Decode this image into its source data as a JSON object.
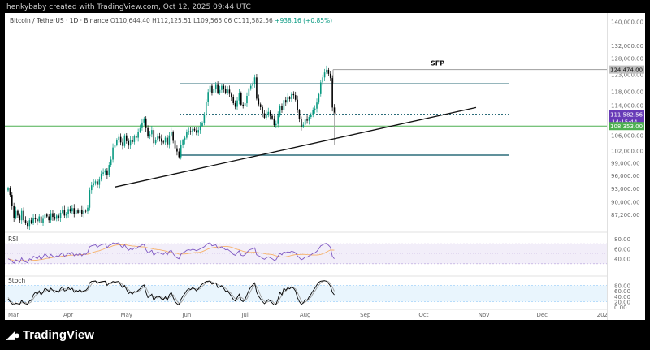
{
  "credit": "henkybaby created with TradingView.com, Oct 12, 2025 09:44 UTC",
  "legend": {
    "symbol": "Bitcoin / TetherUS · 1D · Binance",
    "o": "O110,644.40",
    "h": "H112,125.51",
    "l": "L109,565.06",
    "c": "C111,582.56",
    "chg": "+938.16 (+0.85%)"
  },
  "brand": "TradingView",
  "brand_icon": "tradingview-logo-icon",
  "colors": {
    "up": "#089981",
    "down": "#000000",
    "level": "#2c6d7a",
    "green_line": "#4caf50",
    "rsi": "#7e57c2",
    "rsi_ma": "#f6b26b",
    "stoch_k": "#000000",
    "stoch_d": "#9e9e9e",
    "price_label": "#673ab7"
  },
  "chart_data": {
    "type": "candlestick",
    "title": "Bitcoin / TetherUS · 1D · Binance",
    "ylim": [
      84000,
      143000
    ],
    "y_ticks": [
      "140,000.00",
      "132,000.00",
      "128,000.00",
      "123,000.00",
      "118,000.00",
      "114,000.00",
      "110,000.00",
      "106,000.00",
      "102,000.00",
      "99,000.00",
      "96,000.00",
      "93,000.00",
      "90,000.00",
      "87,200.00"
    ],
    "x_ticks": [
      "Mar",
      "Apr",
      "May",
      "Jun",
      "Jul",
      "Aug",
      "Sep",
      "Oct",
      "Nov",
      "Dec",
      "202"
    ],
    "closes": [
      93000,
      91500,
      89000,
      86500,
      88000,
      87000,
      86000,
      88000,
      86000,
      85500,
      84800,
      86000,
      85500,
      86500,
      86200,
      85800,
      86800,
      85500,
      86300,
      87200,
      86800,
      86000,
      87500,
      86700,
      86300,
      87000,
      86500,
      87600,
      88200,
      87000,
      87400,
      88400,
      87900,
      88600,
      87300,
      88100,
      87600,
      88300,
      87400,
      88000,
      87900,
      88700,
      92600,
      93700,
      94200,
      94600,
      93800,
      95000,
      96400,
      96700,
      97200,
      96000,
      98500,
      99800,
      102800,
      103500,
      104600,
      105500,
      104100,
      103200,
      105900,
      104400,
      103300,
      104800,
      104200,
      105700,
      105300,
      106900,
      107800,
      109300,
      110400,
      107800,
      105600,
      106200,
      107300,
      103900,
      104800,
      105600,
      105100,
      104300,
      104100,
      105300,
      103600,
      105900,
      106800,
      104500,
      102600,
      101800,
      100400,
      103500,
      104600,
      105300,
      106700,
      107000,
      106900,
      107600,
      107200,
      106600,
      107300,
      108400,
      109200,
      111500,
      114900,
      117800,
      119600,
      117500,
      118800,
      119900,
      117600,
      118400,
      119600,
      118800,
      117600,
      118500,
      117300,
      116400,
      114600,
      113600,
      115400,
      117500,
      114200,
      113800,
      114600,
      116700,
      118900,
      119600,
      120200,
      122100,
      115900,
      114300,
      113500,
      111800,
      110600,
      111600,
      112200,
      111100,
      110400,
      108600,
      108900,
      111200,
      113900,
      112600,
      115500,
      114800,
      116200,
      115800,
      117200,
      116900,
      115600,
      112600,
      110300,
      108200,
      108700,
      110100,
      109800,
      110800,
      111400,
      112600,
      113100,
      114800,
      117200,
      120600,
      122100,
      123600,
      124400,
      123200,
      121900,
      113400,
      111580
    ],
    "candle_start_date": "2025-03-01",
    "candle_interval": "1D",
    "annotations": [
      {
        "label": "SFP",
        "value": 125800
      },
      {
        "label": "124,474.00",
        "value": 124474
      },
      {
        "label": "111,582.56",
        "value": 111582.56
      },
      {
        "label": "14:15:44"
      },
      {
        "label": "108,353.00",
        "value": 108353
      }
    ],
    "levels": [
      {
        "name": "range-top",
        "value": 120200
      },
      {
        "name": "mid-dotted",
        "value": 111582
      },
      {
        "name": "support-green",
        "value": 108353
      },
      {
        "name": "range-bottom",
        "value": 100900
      },
      {
        "name": "swing-high",
        "value": 124474
      }
    ],
    "trendline": [
      {
        "date": "2025-04-25",
        "value": 93300
      },
      {
        "date": "2025-10-28",
        "value": 113400
      }
    ],
    "rsi": {
      "label": "RSI",
      "y_ticks": [
        "80.00",
        "60.00",
        "40.00"
      ],
      "ylim": [
        20,
        85
      ],
      "values": [
        40,
        38,
        35,
        31,
        38,
        36,
        33,
        42,
        35,
        34,
        32,
        40,
        38,
        45,
        43,
        40,
        46,
        38,
        44,
        50,
        46,
        42,
        49,
        45,
        43,
        46,
        44,
        49,
        52,
        45,
        47,
        52,
        49,
        53,
        46,
        50,
        47,
        51,
        46,
        50,
        49,
        53,
        64,
        66,
        67,
        68,
        63,
        66,
        68,
        69,
        70,
        62,
        67,
        68,
        72,
        70,
        71,
        72,
        66,
        62,
        68,
        62,
        57,
        60,
        58,
        62,
        60,
        64,
        65,
        68,
        69,
        58,
        52,
        54,
        57,
        47,
        51,
        53,
        52,
        50,
        49,
        53,
        48,
        55,
        57,
        50,
        45,
        42,
        40,
        49,
        52,
        54,
        57,
        58,
        57,
        59,
        58,
        56,
        58,
        60,
        62,
        64,
        68,
        71,
        72,
        66,
        67,
        68,
        61,
        62,
        64,
        61,
        58,
        59,
        56,
        53,
        49,
        47,
        52,
        56,
        47,
        46,
        48,
        53,
        57,
        59,
        60,
        62,
        48,
        46,
        44,
        41,
        39,
        42,
        44,
        42,
        40,
        37,
        38,
        45,
        51,
        48,
        54,
        52,
        54,
        53,
        55,
        54,
        52,
        46,
        42,
        38,
        40,
        44,
        43,
        46,
        48,
        51,
        52,
        55,
        60,
        66,
        68,
        70,
        71,
        67,
        63,
        45,
        40
      ]
    },
    "stoch": {
      "label": "Stoch",
      "y_ticks": [
        "80.00",
        "60.00",
        "40.00",
        "20.00",
        "0.00"
      ],
      "ylim": [
        0,
        100
      ],
      "k": [
        30,
        20,
        12,
        8,
        15,
        12,
        10,
        25,
        15,
        12,
        10,
        22,
        25,
        45,
        55,
        48,
        60,
        45,
        55,
        70,
        65,
        58,
        70,
        62,
        55,
        60,
        55,
        68,
        75,
        60,
        62,
        72,
        65,
        70,
        55,
        62,
        58,
        65,
        55,
        60,
        62,
        70,
        90,
        95,
        96,
        97,
        88,
        92,
        94,
        95,
        96,
        80,
        88,
        90,
        95,
        92,
        94,
        95,
        82,
        72,
        80,
        65,
        50,
        55,
        48,
        58,
        55,
        62,
        68,
        78,
        82,
        55,
        35,
        40,
        48,
        25,
        35,
        40,
        38,
        30,
        28,
        38,
        25,
        45,
        55,
        35,
        20,
        12,
        8,
        28,
        40,
        50,
        62,
        68,
        65,
        72,
        68,
        60,
        68,
        78,
        85,
        90,
        95,
        96,
        97,
        85,
        88,
        90,
        72,
        75,
        80,
        70,
        58,
        60,
        50,
        40,
        28,
        22,
        35,
        48,
        25,
        20,
        28,
        45,
        62,
        75,
        82,
        90,
        55,
        40,
        30,
        20,
        12,
        20,
        28,
        22,
        15,
        8,
        10,
        30,
        55,
        45,
        70,
        62,
        72,
        68,
        75,
        70,
        60,
        35,
        20,
        10,
        15,
        28,
        25,
        38,
        48,
        60,
        70,
        82,
        92,
        96,
        97,
        98,
        95,
        88,
        78,
        55,
        45
      ],
      "d": [
        35,
        25,
        18,
        12,
        12,
        12,
        12,
        16,
        16,
        17,
        12,
        15,
        19,
        31,
        42,
        49,
        54,
        51,
        53,
        57,
        63,
        64,
        64,
        63,
        62,
        59,
        57,
        61,
        66,
        68,
        66,
        65,
        66,
        69,
        63,
        62,
        58,
        62,
        59,
        60,
        59,
        64,
        74,
        85,
        94,
        96,
        94,
        92,
        91,
        94,
        95,
        90,
        88,
        86,
        91,
        92,
        94,
        94,
        90,
        83,
        78,
        72,
        65,
        57,
        51,
        54,
        54,
        58,
        62,
        69,
        76,
        72,
        57,
        43,
        41,
        38,
        36,
        33,
        38,
        36,
        32,
        32,
        30,
        36,
        42,
        45,
        37,
        22,
        13,
        16,
        25,
        39,
        51,
        60,
        65,
        68,
        68,
        67,
        65,
        69,
        77,
        84,
        90,
        94,
        96,
        93,
        90,
        88,
        83,
        79,
        76,
        75,
        69,
        63,
        56,
        50,
        39,
        30,
        28,
        35,
        36,
        31,
        24,
        31,
        45,
        61,
        73,
        82,
        76,
        62,
        42,
        30,
        21,
        17,
        20,
        23,
        22,
        15,
        11,
        16,
        32,
        43,
        57,
        59,
        68,
        67,
        72,
        71,
        68,
        55,
        38,
        22,
        15,
        18,
        23,
        30,
        37,
        49,
        59,
        71,
        81,
        90,
        95,
        97,
        97,
        94,
        87,
        74,
        59
      ]
    }
  }
}
